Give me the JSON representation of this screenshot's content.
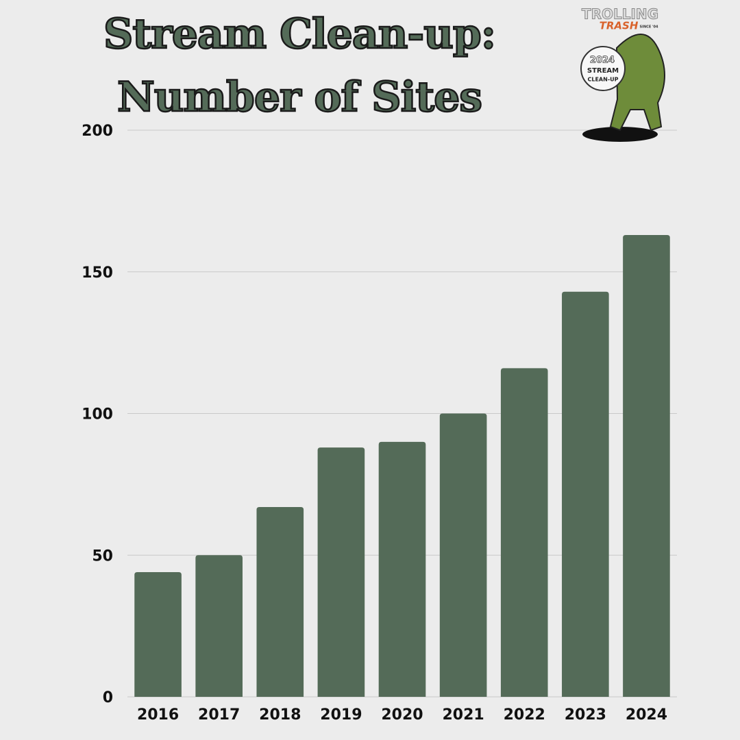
{
  "chart_data": {
    "type": "bar",
    "title": "Stream Clean-up: Number of Sites",
    "categories": [
      "2016",
      "2017",
      "2018",
      "2019",
      "2020",
      "2021",
      "2022",
      "2023",
      "2024"
    ],
    "values": [
      44,
      50,
      67,
      88,
      90,
      100,
      116,
      143,
      163
    ],
    "color": "#546b58",
    "ylim": [
      0,
      200
    ],
    "yticks": [
      0,
      50,
      100,
      150,
      200
    ],
    "grid": true
  },
  "logo": {
    "name": "TROLLING",
    "subname": "TRASH",
    "since": "SINCE '04",
    "year": "2024",
    "line1": "STREAM",
    "line2": "CLEAN-UP"
  }
}
